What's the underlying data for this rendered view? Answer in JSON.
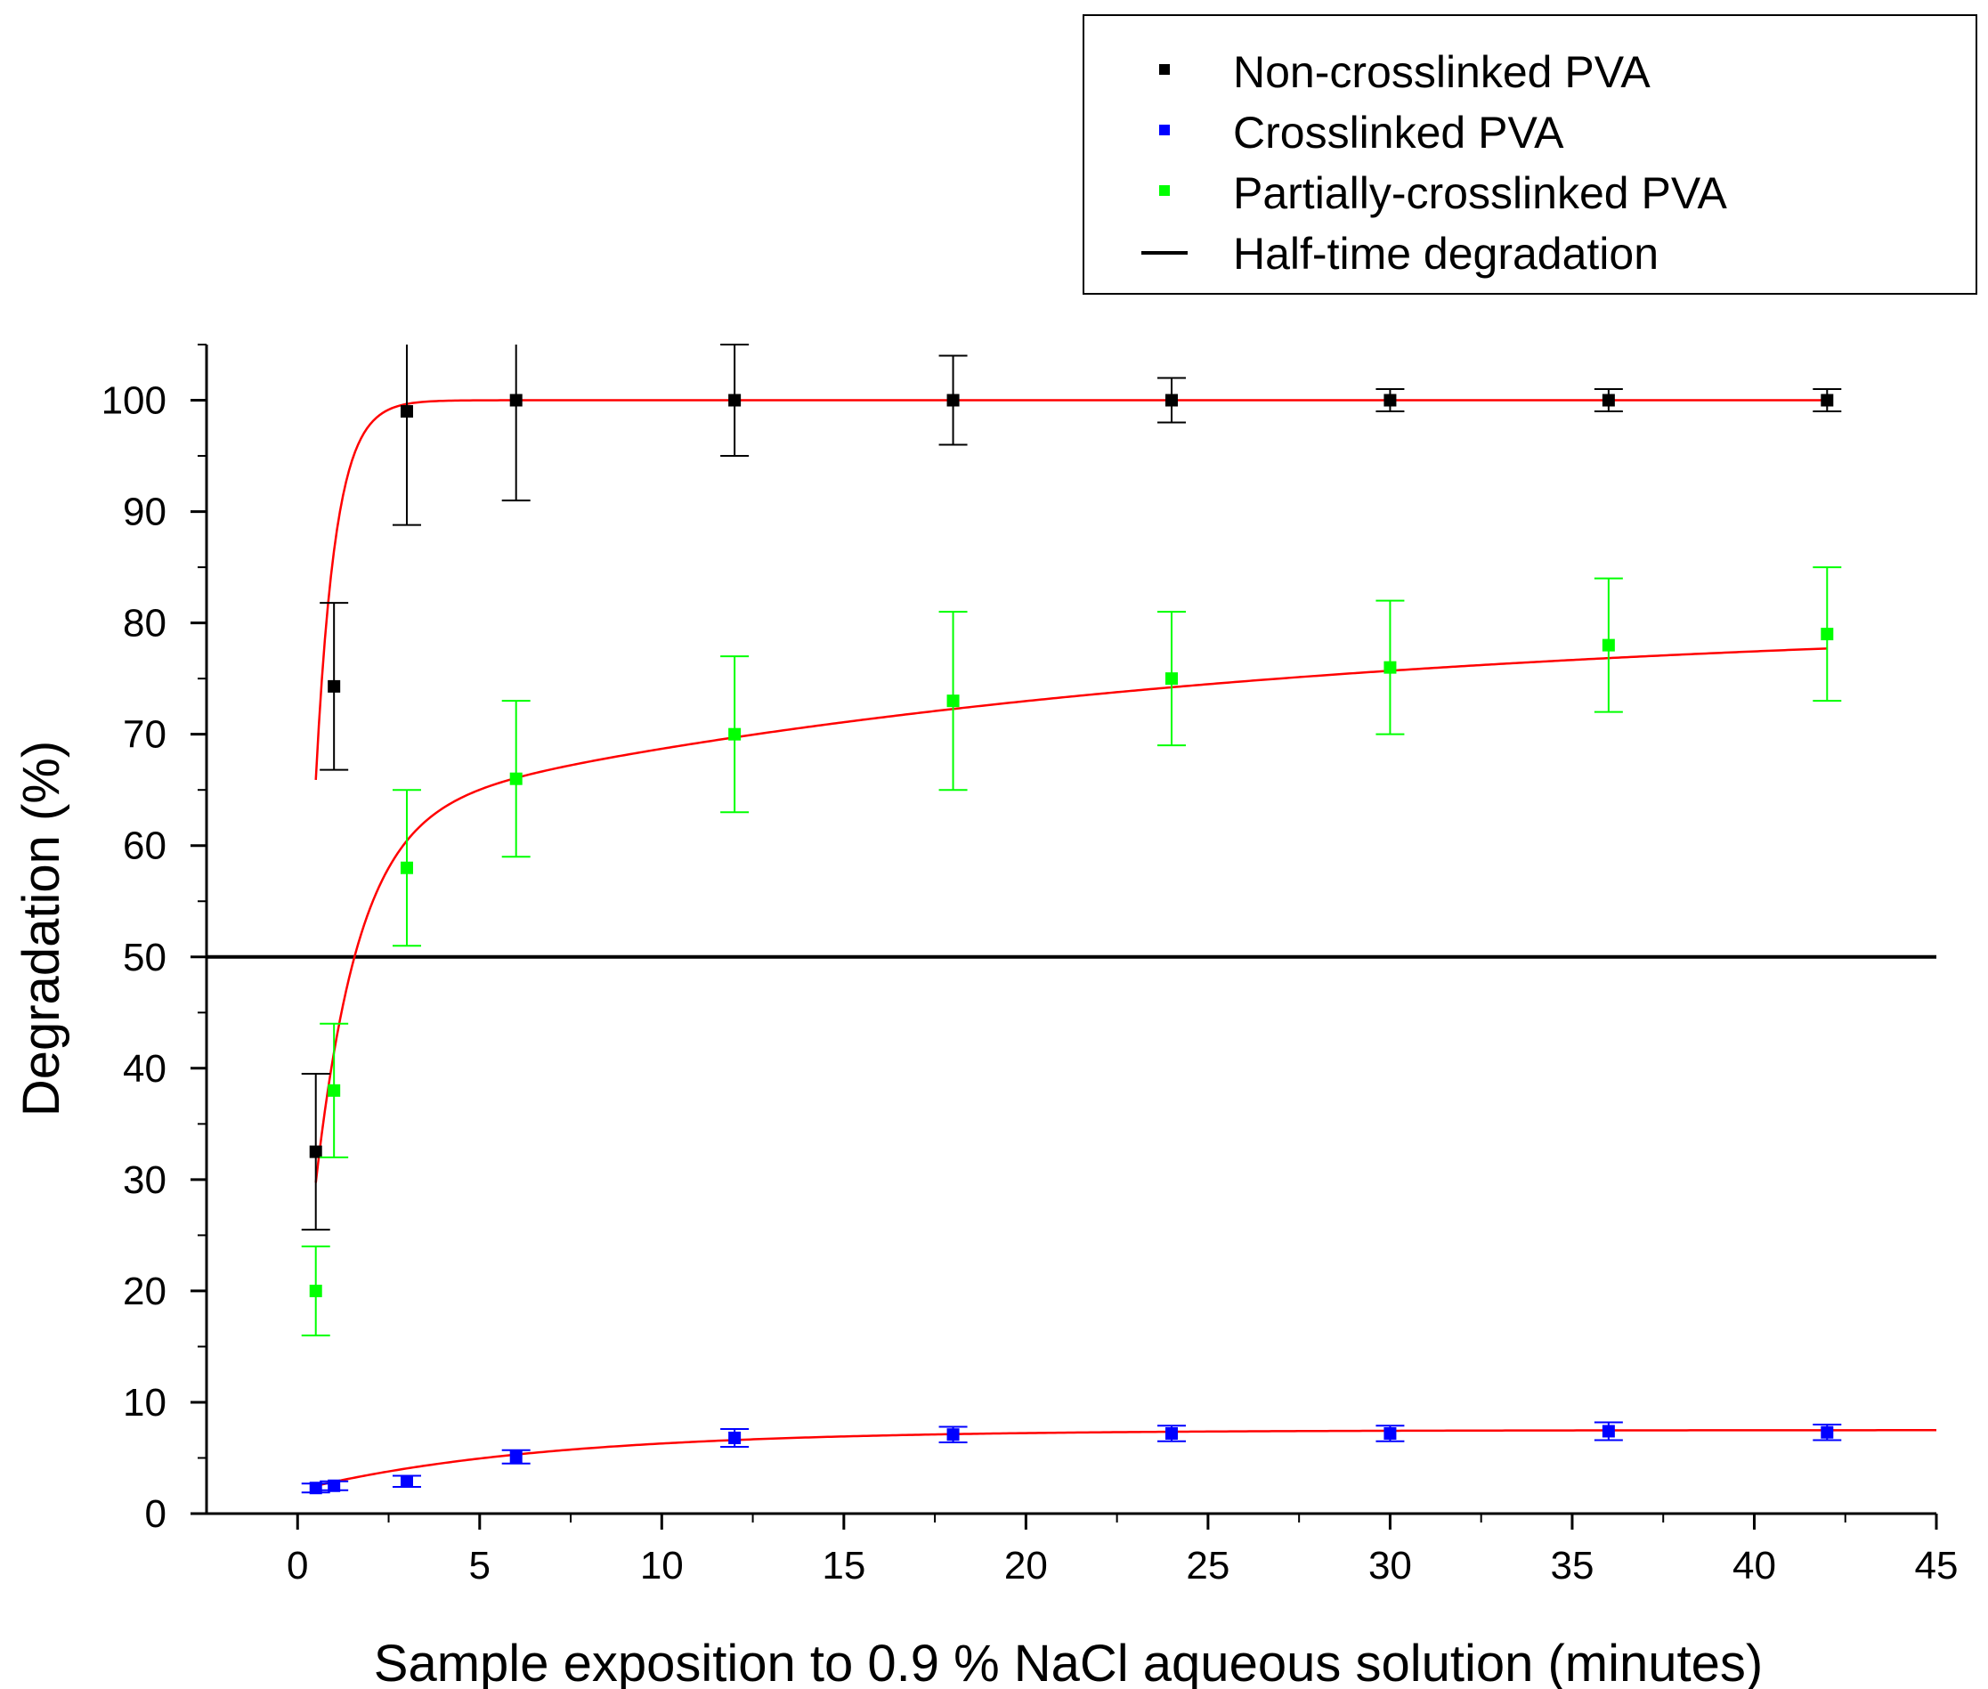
{
  "chart_data": {
    "type": "scatter",
    "title": "",
    "xlabel": "Sample exposition to 0.9 % NaCl aqueous solution (minutes)",
    "ylabel": "Degradation (%)",
    "xlim": [
      -2.5,
      45
    ],
    "ylim": [
      0,
      105
    ],
    "x_ticks": [
      0,
      5,
      10,
      15,
      20,
      25,
      30,
      35,
      40,
      45
    ],
    "y_ticks": [
      0,
      10,
      20,
      30,
      40,
      50,
      60,
      70,
      80,
      90,
      100
    ],
    "grid": false,
    "legend_position": "top-right",
    "series": [
      {
        "name": "Non-crosslinked PVA",
        "color": "#000000",
        "marker": "square",
        "x": [
          0.5,
          1,
          3,
          6,
          12,
          18,
          24,
          30,
          36,
          42
        ],
        "y": [
          32.5,
          74.3,
          99,
          100,
          100,
          100,
          100,
          100,
          100,
          100
        ],
        "err": [
          7,
          7.5,
          10.2,
          9,
          5,
          4,
          2,
          1,
          1,
          1
        ],
        "fit": "100 - 86*exp(-1.85*x)"
      },
      {
        "name": "Crosslinked PVA",
        "color": "#0000ff",
        "marker": "square",
        "x": [
          0.5,
          1,
          3,
          6,
          12,
          18,
          24,
          30,
          36,
          42
        ],
        "y": [
          2.3,
          2.5,
          2.9,
          5.1,
          6.8,
          7.1,
          7.2,
          7.2,
          7.4,
          7.3
        ],
        "err": [
          0.4,
          0.4,
          0.5,
          0.6,
          0.8,
          0.7,
          0.7,
          0.7,
          0.8,
          0.7
        ],
        "fit": "7.5 - 5.4*exp(-0.15*x)"
      },
      {
        "name": "Partially-crosslinked PVA",
        "color": "#00ff00",
        "marker": "square",
        "x": [
          0.5,
          1,
          3,
          6,
          12,
          18,
          24,
          30,
          36,
          42
        ],
        "y": [
          20,
          38,
          58,
          66,
          70,
          73,
          75,
          76,
          78,
          79
        ],
        "err": [
          4,
          6,
          7,
          7,
          7,
          8,
          6,
          6,
          6,
          6
        ],
        "fit": "biexponential rise to ~80"
      }
    ],
    "reference_line": {
      "name": "Half-time degradation",
      "y": 50,
      "color": "#000000"
    },
    "fit_color": "#ff0000"
  }
}
